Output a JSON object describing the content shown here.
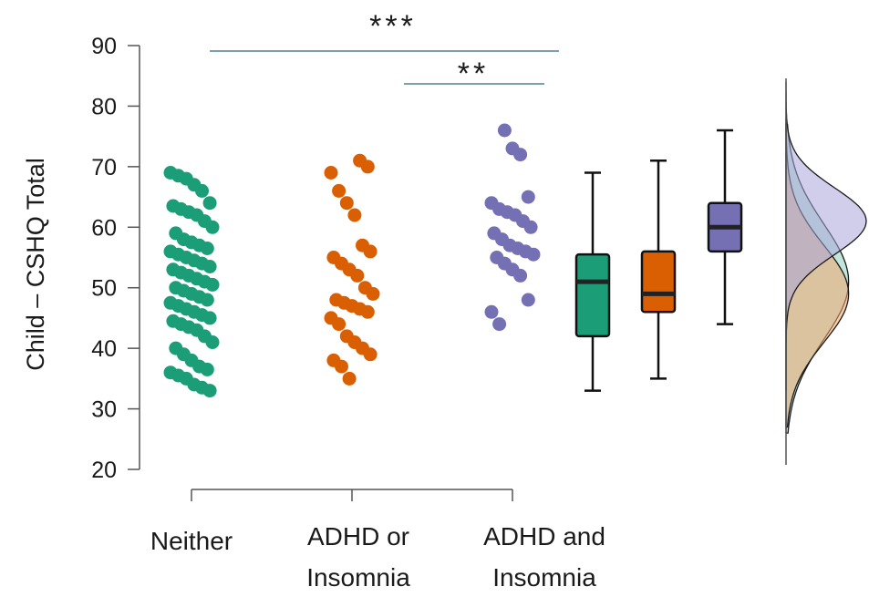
{
  "chart_data": {
    "type": "raincloud",
    "ylabel": "Child – CSHQ Total",
    "ylim": [
      20,
      90
    ],
    "yticks": [
      20,
      30,
      40,
      50,
      60,
      70,
      80,
      90
    ],
    "categories": [
      {
        "line1": "Neither",
        "line2": ""
      },
      {
        "line1": "ADHD or",
        "line2": "Insomnia"
      },
      {
        "line1": "ADHD and",
        "line2": "Insomnia"
      }
    ],
    "colors": [
      "#1b9e77",
      "#d95f02",
      "#7570b3"
    ],
    "density_colors": [
      "#8fd1c0",
      "#f2a66d",
      "#a9a5d9"
    ],
    "series": [
      {
        "points": [
          69,
          68.5,
          68,
          67,
          66,
          64,
          63.5,
          63,
          62.5,
          62,
          61,
          60,
          59,
          58,
          57.5,
          57,
          56.5,
          56,
          55.5,
          55,
          54.5,
          54,
          53.5,
          53,
          52.5,
          52,
          51.5,
          51,
          50.5,
          50,
          49.5,
          49,
          48.5,
          48,
          47.5,
          47,
          46.5,
          46,
          45.5,
          45,
          44.5,
          44,
          43.5,
          43,
          42,
          41,
          40,
          39,
          38,
          37,
          36.5,
          36,
          35.5,
          35,
          34,
          33.5,
          33
        ],
        "box": {
          "min": 33,
          "q1": 42,
          "median": 51,
          "q3": 55.5,
          "max": 69
        }
      },
      {
        "points": [
          71,
          70,
          69,
          66,
          64,
          62,
          57,
          56,
          55,
          54,
          53,
          52,
          50,
          49,
          48,
          47.5,
          47,
          46.5,
          46,
          45,
          44,
          42,
          41,
          40,
          39,
          38,
          37,
          35
        ],
        "box": {
          "min": 35,
          "q1": 46,
          "median": 49,
          "q3": 56,
          "max": 71
        }
      },
      {
        "points": [
          76,
          73,
          72,
          65,
          64,
          63,
          62.5,
          62,
          61,
          60,
          59,
          58,
          57,
          56.5,
          56,
          55.5,
          55,
          54,
          53,
          52,
          48,
          46,
          44
        ],
        "box": {
          "min": 44,
          "q1": 56,
          "median": 60,
          "q3": 64,
          "max": 76
        }
      }
    ],
    "density": [
      {
        "mean": 51,
        "sd": 9.5,
        "lo": 26,
        "hi": 77
      },
      {
        "mean": 49,
        "sd": 8.0,
        "lo": 27,
        "hi": 78
      },
      {
        "mean": 61,
        "sd": 5.5,
        "lo": 33,
        "hi": 84
      }
    ],
    "significance": [
      {
        "label": "***",
        "y": 89,
        "from": "Neither",
        "to": "ADHD and Insomnia"
      },
      {
        "label": "**",
        "y": 83.5,
        "from": "ADHD or Insomnia",
        "to": "ADHD and Insomnia"
      }
    ]
  }
}
